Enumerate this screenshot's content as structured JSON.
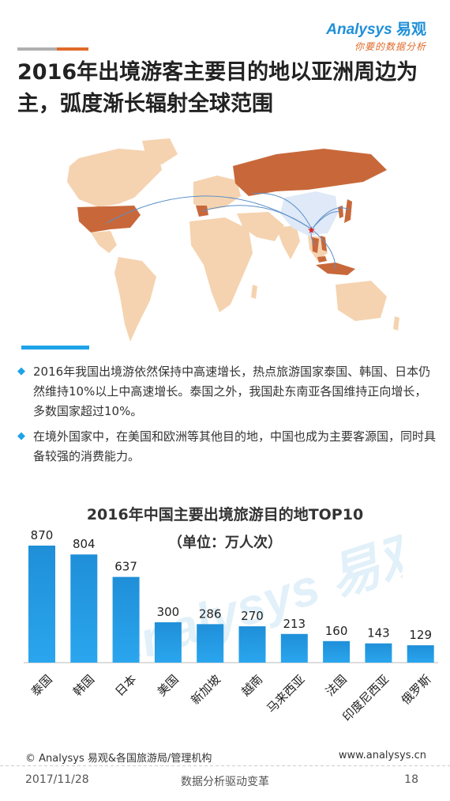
{
  "header": {
    "logo_text": "nalysys",
    "logo_cn": "易观",
    "logo_slogan": "你要的数据分析"
  },
  "title": "2016年出境游客主要目的地以亚洲周边为主，弧度渐长辐射全球范围",
  "bullets": [
    "2016年我国出境游依然保持中高速增长，热点旅游国家泰国、韩国、日本仍然维持10%以上中高速增长。泰国之外，我国赴东南亚各国维持正向增长，多数国家超过10%。",
    "在境外国家中，在美国和欧洲等其他目的地，中国也成为主要客源国，同时具备较强的消费能力。"
  ],
  "chart_data": {
    "type": "bar",
    "title": "2016年中国主要出境旅游目的地TOP10",
    "subtitle": "（单位：万人次）",
    "categories": [
      "泰国",
      "韩国",
      "日本",
      "美国",
      "新加坡",
      "越南",
      "马来西亚",
      "法国",
      "印度尼西亚",
      "俄罗斯"
    ],
    "values": [
      870,
      804,
      637,
      300,
      286,
      270,
      213,
      160,
      143,
      129
    ],
    "ylim": [
      0,
      900
    ],
    "bar_color": "#1f8fd8"
  },
  "footer": {
    "source": "© Analysys 易观&各国旅游局/管理机构",
    "website": "www.analysys.cn",
    "date": "2017/11/28",
    "slogan": "数据分析驱动变革",
    "page": "18"
  },
  "colors": {
    "accent": "#1fa3e8",
    "brand_orange": "#e06a2a",
    "map_land": "#f5d3b0",
    "map_highlight": "#c8683a",
    "map_china": "#dfe9f7"
  }
}
